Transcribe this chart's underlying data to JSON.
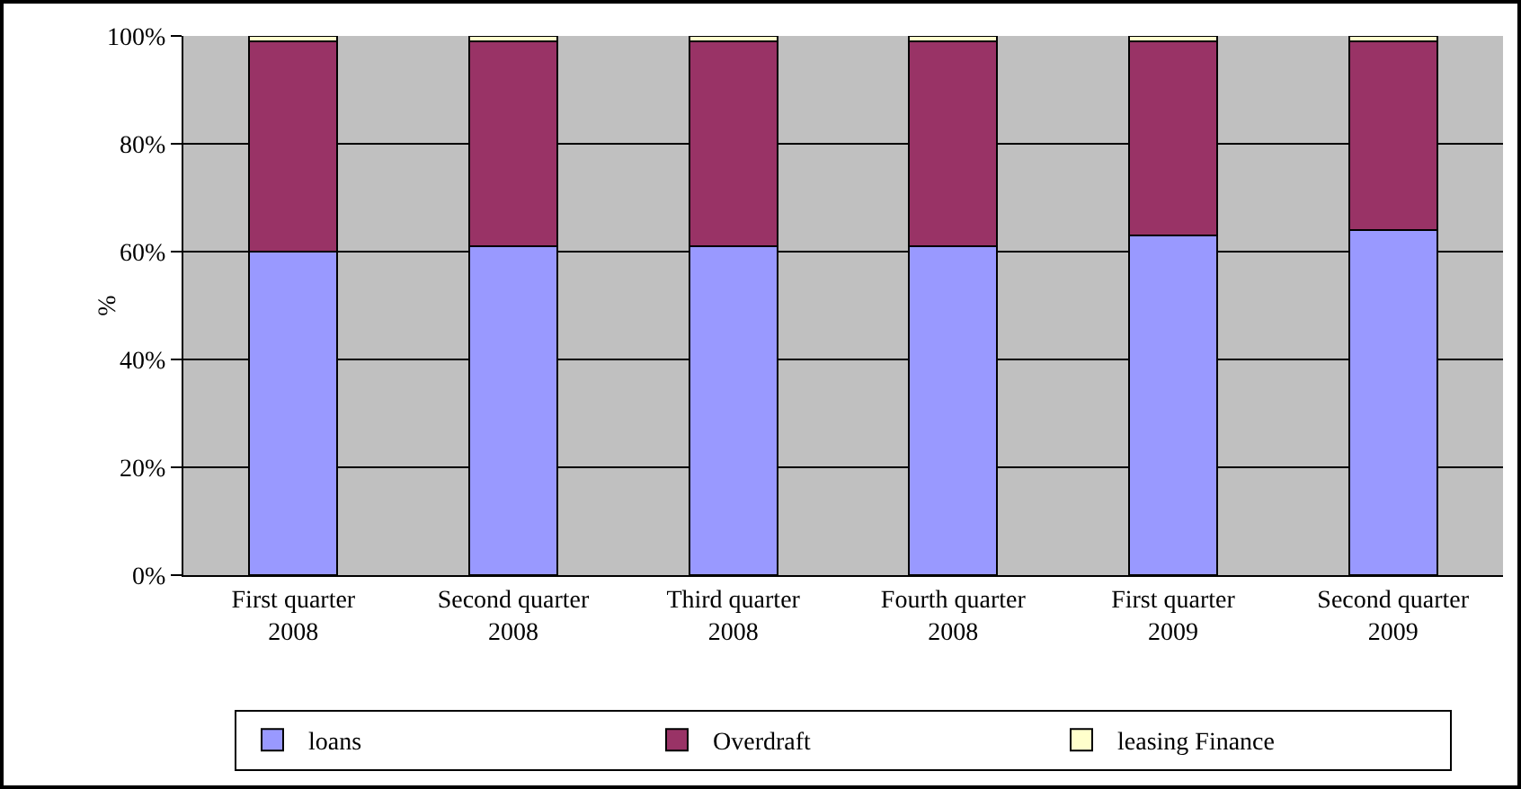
{
  "chart_data": {
    "type": "bar",
    "stacked": true,
    "ylabel": "%",
    "categories": [
      "First quarter\n2008",
      "Second quarter\n2008",
      "Third quarter\n2008",
      "Fourth quarter\n2008",
      "First quarter\n2009",
      "Second quarter\n2009"
    ],
    "series": [
      {
        "name": "loans",
        "color": "#9999ff",
        "values": [
          60,
          61,
          61,
          61,
          63,
          64
        ]
      },
      {
        "name": "Overdraft",
        "color": "#993366",
        "values": [
          39,
          38,
          38,
          38,
          36,
          35
        ]
      },
      {
        "name": "leasing Finance",
        "color": "#ffffcc",
        "values": [
          1,
          1,
          1,
          1,
          1,
          1
        ]
      }
    ],
    "ylim": [
      0,
      100
    ],
    "yticks": [
      {
        "value": 0,
        "label": "0%"
      },
      {
        "value": 20,
        "label": "20%"
      },
      {
        "value": 40,
        "label": "40%"
      },
      {
        "value": 60,
        "label": "60%"
      },
      {
        "value": 80,
        "label": "80%"
      },
      {
        "value": 100,
        "label": "100%"
      }
    ],
    "grid": "y",
    "legend": "bottom"
  }
}
